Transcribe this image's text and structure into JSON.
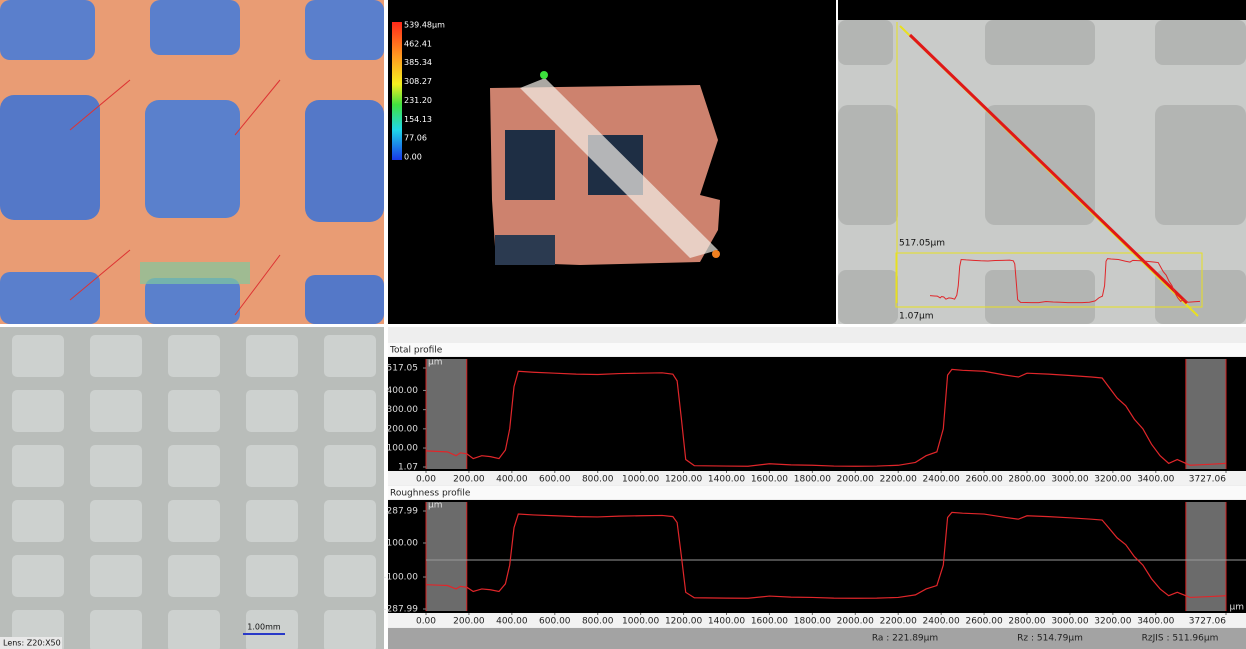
{
  "height_map": {
    "color_scale": [
      "539.48μm",
      "462.41",
      "385.34",
      "308.27",
      "231.20",
      "154.13",
      "77.06",
      "0.00"
    ]
  },
  "profile_view": {
    "max_label": "517.05μm",
    "min_label": "1.07μm"
  },
  "microscope": {
    "scale_bar": "1.00mm",
    "lens": "Lens: Z20:X50"
  },
  "summary": {
    "ra": "Ra : 221.89μm",
    "rz": "Rz : 514.79μm",
    "rzjis": "RzJIS : 511.96μm"
  },
  "chart_data": [
    {
      "type": "line",
      "title": "Total profile",
      "y_unit": "μm",
      "color": "#e0262a",
      "x": [
        0,
        60,
        100,
        140,
        160,
        190,
        220,
        260,
        300,
        340,
        370,
        390,
        410,
        430,
        500,
        600,
        700,
        800,
        900,
        1000,
        1100,
        1150,
        1170,
        1190,
        1210,
        1250,
        1400,
        1500,
        1600,
        1700,
        1800,
        1900,
        2000,
        2100,
        2200,
        2280,
        2330,
        2380,
        2410,
        2430,
        2450,
        2500,
        2600,
        2700,
        2760,
        2800,
        2900,
        3000,
        3100,
        3150,
        3180,
        3220,
        3260,
        3300,
        3340,
        3380,
        3420,
        3460,
        3500,
        3560,
        3650,
        3727.06
      ],
      "values": [
        85,
        82,
        80,
        60,
        75,
        70,
        45,
        60,
        55,
        45,
        90,
        200,
        420,
        500,
        495,
        490,
        485,
        483,
        488,
        490,
        492,
        485,
        450,
        250,
        40,
        8,
        6,
        5,
        18,
        12,
        10,
        6,
        5,
        6,
        10,
        25,
        60,
        80,
        200,
        480,
        510,
        505,
        500,
        480,
        470,
        490,
        485,
        478,
        470,
        465,
        420,
        360,
        320,
        250,
        200,
        120,
        60,
        20,
        40,
        10,
        15,
        20
      ],
      "xlim": [
        0,
        3727.06
      ],
      "ylim": [
        1.07,
        517.05
      ],
      "yticks": [
        517.05,
        {
          "value": 400,
          "label": "400.00"
        },
        {
          "value": 300,
          "label": "300.00"
        },
        {
          "value": 200,
          "label": "200.00"
        },
        {
          "value": 100,
          "label": "100.00"
        },
        1.07
      ],
      "xticks": [
        {
          "value": 0,
          "label": "0.00"
        },
        {
          "value": 200,
          "label": "200.00"
        },
        {
          "value": 400,
          "label": "400.00"
        },
        {
          "value": 600,
          "label": "600.00"
        },
        {
          "value": 800,
          "label": "800.00"
        },
        {
          "value": 1000,
          "label": "1000.00"
        },
        {
          "value": 1200,
          "label": "1200.00"
        },
        {
          "value": 1400,
          "label": "1400.00"
        },
        {
          "value": 1600,
          "label": "1600.00"
        },
        {
          "value": 1800,
          "label": "1800.00"
        },
        {
          "value": 2000,
          "label": "2000.00"
        },
        {
          "value": 2200,
          "label": "2200.00"
        },
        {
          "value": 2400,
          "label": "2400.00"
        },
        {
          "value": 2600,
          "label": "2600.00"
        },
        {
          "value": 2800,
          "label": "2800.00"
        },
        {
          "value": 3000,
          "label": "3000.00"
        },
        {
          "value": 3200,
          "label": "3200.00"
        },
        {
          "value": 3400,
          "label": "3400.00"
        },
        3727.06
      ],
      "shaded_ranges": [
        [
          0,
          190
        ],
        [
          3540,
          3727.06
        ]
      ]
    },
    {
      "type": "line",
      "title": "Roughness profile",
      "y_unit": "μm",
      "x_unit": "μm",
      "color": "#e0262a",
      "zero_line": true,
      "x": [
        0,
        60,
        100,
        140,
        160,
        190,
        220,
        260,
        300,
        340,
        370,
        390,
        410,
        430,
        500,
        600,
        700,
        800,
        900,
        1000,
        1100,
        1150,
        1170,
        1190,
        1210,
        1250,
        1400,
        1500,
        1600,
        1700,
        1800,
        1900,
        2000,
        2100,
        2200,
        2280,
        2330,
        2380,
        2410,
        2430,
        2450,
        2500,
        2600,
        2700,
        2760,
        2800,
        2900,
        3000,
        3100,
        3150,
        3180,
        3220,
        3260,
        3300,
        3340,
        3380,
        3420,
        3460,
        3500,
        3560,
        3650,
        3727.06
      ],
      "values": [
        -145,
        -148,
        -150,
        -170,
        -155,
        -160,
        -185,
        -170,
        -175,
        -185,
        -140,
        -30,
        190,
        270,
        265,
        260,
        255,
        253,
        258,
        260,
        262,
        255,
        220,
        20,
        -190,
        -222,
        -224,
        -225,
        -212,
        -218,
        -220,
        -224,
        -225,
        -224,
        -220,
        -205,
        -170,
        -150,
        -30,
        250,
        280,
        275,
        270,
        250,
        240,
        260,
        255,
        248,
        240,
        235,
        190,
        130,
        90,
        20,
        -30,
        -110,
        -170,
        -210,
        -190,
        -220,
        -215,
        -210
      ],
      "xlim": [
        0,
        3727.06
      ],
      "ylim": [
        -287.99,
        287.99
      ],
      "yticks": [
        287.99,
        {
          "value": 100,
          "label": "100.00"
        },
        {
          "value": -100,
          "label": "-100.00"
        },
        -287.99
      ],
      "xticks": [
        {
          "value": 0,
          "label": "0.00"
        },
        {
          "value": 200,
          "label": "200.00"
        },
        {
          "value": 400,
          "label": "400.00"
        },
        {
          "value": 600,
          "label": "600.00"
        },
        {
          "value": 800,
          "label": "800.00"
        },
        {
          "value": 1000,
          "label": "1000.00"
        },
        {
          "value": 1200,
          "label": "1200.00"
        },
        {
          "value": 1400,
          "label": "1400.00"
        },
        {
          "value": 1600,
          "label": "1600.00"
        },
        {
          "value": 1800,
          "label": "1800.00"
        },
        {
          "value": 2000,
          "label": "2000.00"
        },
        {
          "value": 2200,
          "label": "2200.00"
        },
        {
          "value": 2400,
          "label": "2400.00"
        },
        {
          "value": 2600,
          "label": "2600.00"
        },
        {
          "value": 2800,
          "label": "2800.00"
        },
        {
          "value": 3000,
          "label": "3000.00"
        },
        {
          "value": 3200,
          "label": "3200.00"
        },
        {
          "value": 3400,
          "label": "3400.00"
        },
        3727.06
      ],
      "shaded_ranges": [
        [
          0,
          190
        ],
        [
          3540,
          3727.06
        ]
      ]
    }
  ]
}
